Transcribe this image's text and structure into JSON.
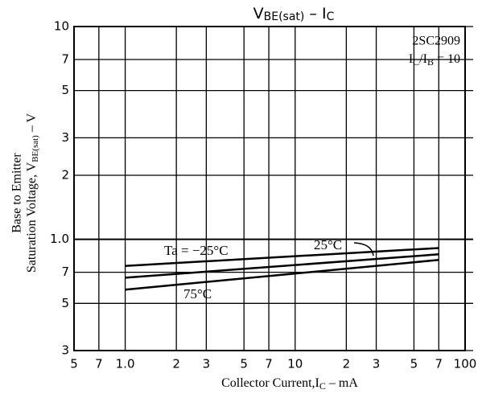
{
  "chart_data": {
    "type": "line",
    "title": [
      "V",
      "BE(sat)",
      "  –  I",
      "C"
    ],
    "xlabel": [
      "Collector Current,I",
      "C",
      " – mA"
    ],
    "ylabel_line1": "Base to Emitter",
    "ylabel_line2": [
      "Saturation Voltage, V",
      "BE(sat)",
      "  –  V"
    ],
    "annotations": {
      "device": "2SC2909",
      "condition": [
        "I",
        "C",
        "/I",
        "B",
        " = 10"
      ]
    },
    "log_x": true,
    "log_y": true,
    "grid": true,
    "color": "#000000",
    "xlim": [
      0.5,
      100
    ],
    "xticks": [
      {
        "value": 0.5,
        "label": "5"
      },
      {
        "value": 0.7,
        "label": "7"
      },
      {
        "value": 1,
        "label": "1.0"
      },
      2,
      3,
      5,
      7,
      10,
      {
        "value": 20,
        "label": "2"
      },
      {
        "value": 30,
        "label": "3"
      },
      {
        "value": 50,
        "label": "5"
      },
      {
        "value": 70,
        "label": "7"
      },
      100
    ],
    "ylim": [
      0.3,
      10
    ],
    "yticks": [
      {
        "value": 0.3,
        "label": "3"
      },
      {
        "value": 0.5,
        "label": "5"
      },
      {
        "value": 0.7,
        "label": "7"
      },
      {
        "value": 1,
        "label": "1.0"
      },
      2,
      3,
      5,
      7,
      10
    ],
    "x": [
      1,
      70
    ],
    "series": [
      {
        "name": "Ta = −25°C",
        "color": "#000000",
        "values": [
          0.75,
          0.91
        ]
      },
      {
        "name": "25°C",
        "color": "#000000",
        "values": [
          0.66,
          0.85
        ]
      },
      {
        "name": "75°C",
        "color": "#000000",
        "values": [
          0.58,
          0.8
        ]
      }
    ]
  }
}
